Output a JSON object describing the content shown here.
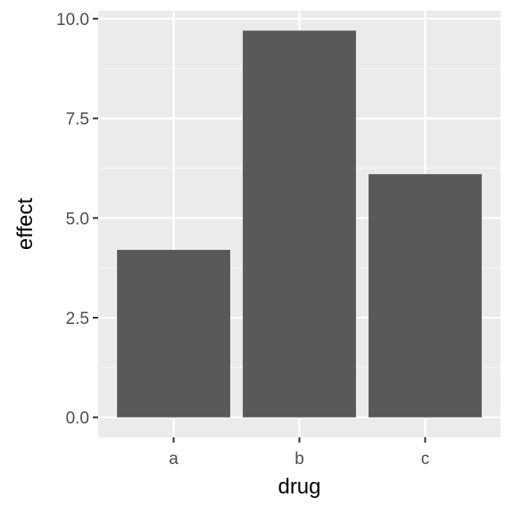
{
  "chart_data": {
    "type": "bar",
    "title": "",
    "xlabel": "drug",
    "ylabel": "effect",
    "categories": [
      "a",
      "b",
      "c"
    ],
    "values": [
      4.2,
      9.7,
      6.1
    ],
    "ylim": [
      -0.5,
      10.2
    ],
    "yticks": [
      0.0,
      2.5,
      5.0,
      7.5,
      10.0
    ],
    "ytick_labels": [
      "0.0",
      "2.5",
      "5.0",
      "7.5",
      "10.0"
    ],
    "grid": true,
    "legend": "none",
    "colors": {
      "bar": "#595959",
      "panel_background": "#ebebeb",
      "grid_major": "#ffffff",
      "grid_minor": "#f5f5f5",
      "tick_text": "#4d4d4d",
      "axis_title": "#000000",
      "tick_mark": "#333333"
    }
  }
}
